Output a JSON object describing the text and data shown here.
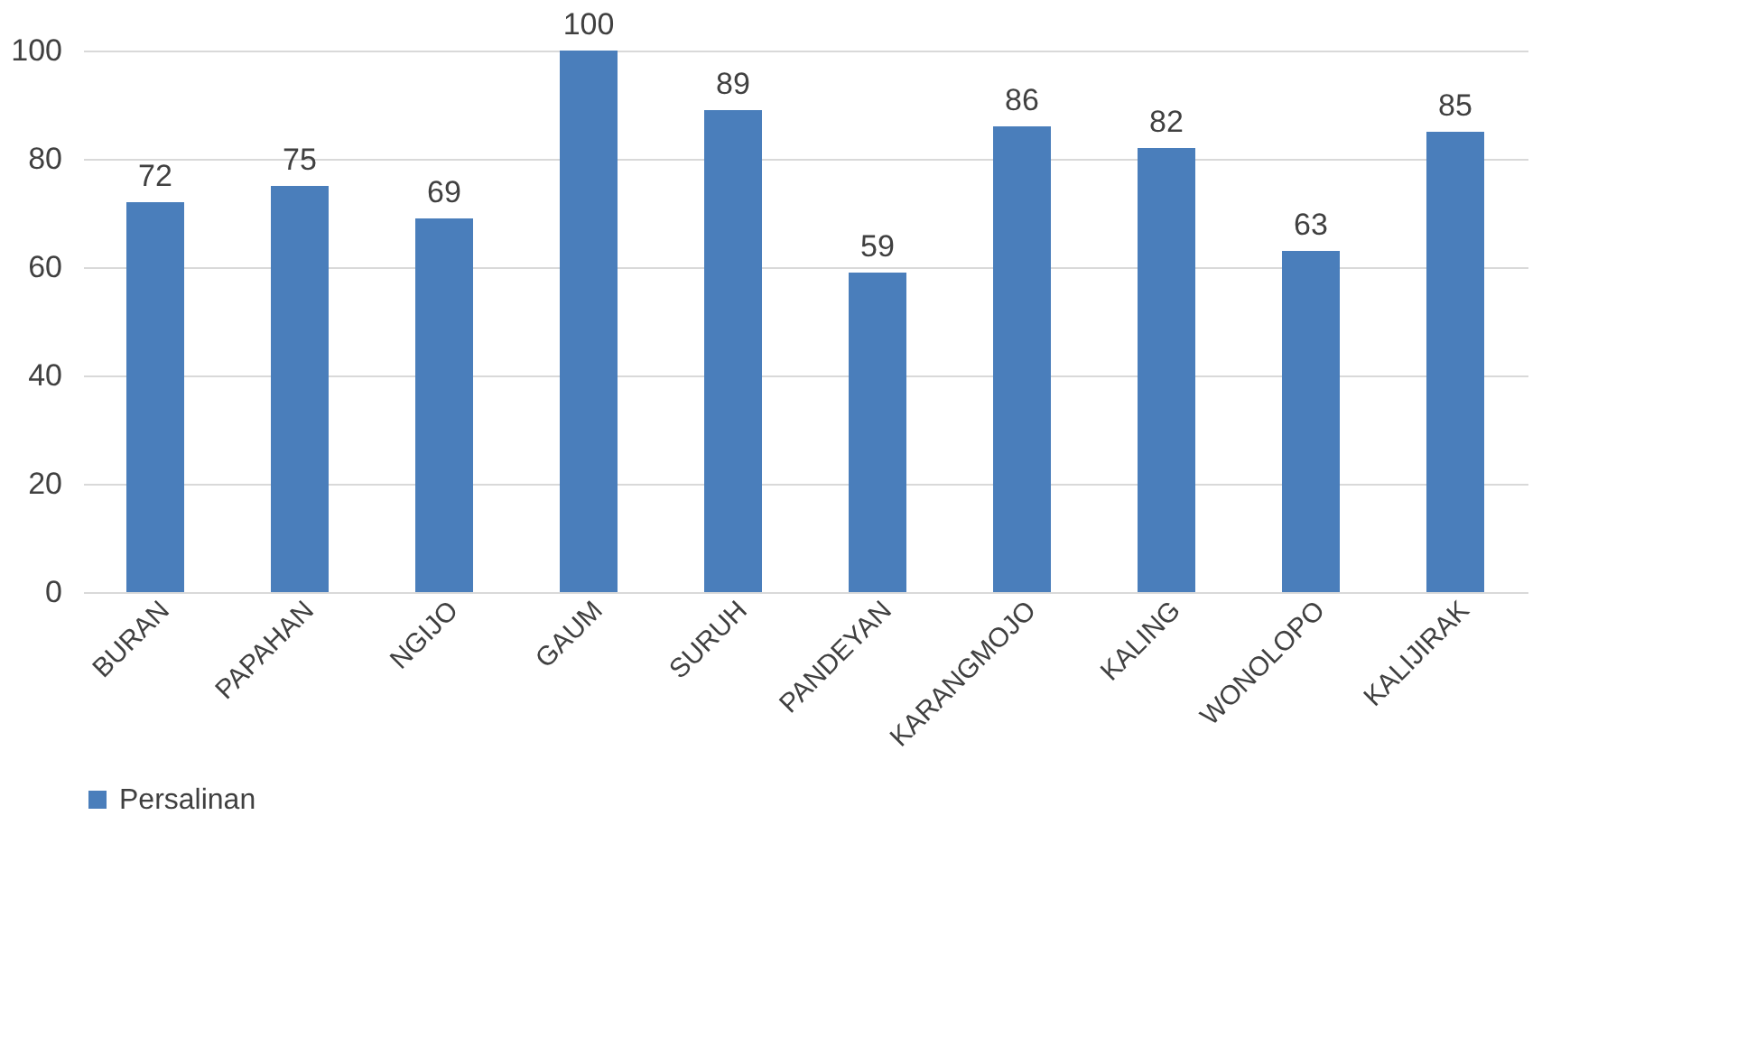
{
  "chart_data": {
    "type": "bar",
    "categories": [
      "BURAN",
      "PAPAHAN",
      "NGIJO",
      "GAUM",
      "SURUH",
      "PANDEYAN",
      "KARANGMOJO",
      "KALING",
      "WONOLOPO",
      "KALIJIRAK"
    ],
    "series": [
      {
        "name": "Persalinan",
        "color": "#4a7ebb",
        "values": [
          72,
          75,
          69,
          100,
          89,
          59,
          86,
          82,
          63,
          85
        ]
      }
    ],
    "ylim": [
      0,
      100
    ],
    "yticks": [
      0,
      20,
      40,
      60,
      80,
      100
    ],
    "grid": "y",
    "data_labels": true,
    "legend": "bottom"
  }
}
